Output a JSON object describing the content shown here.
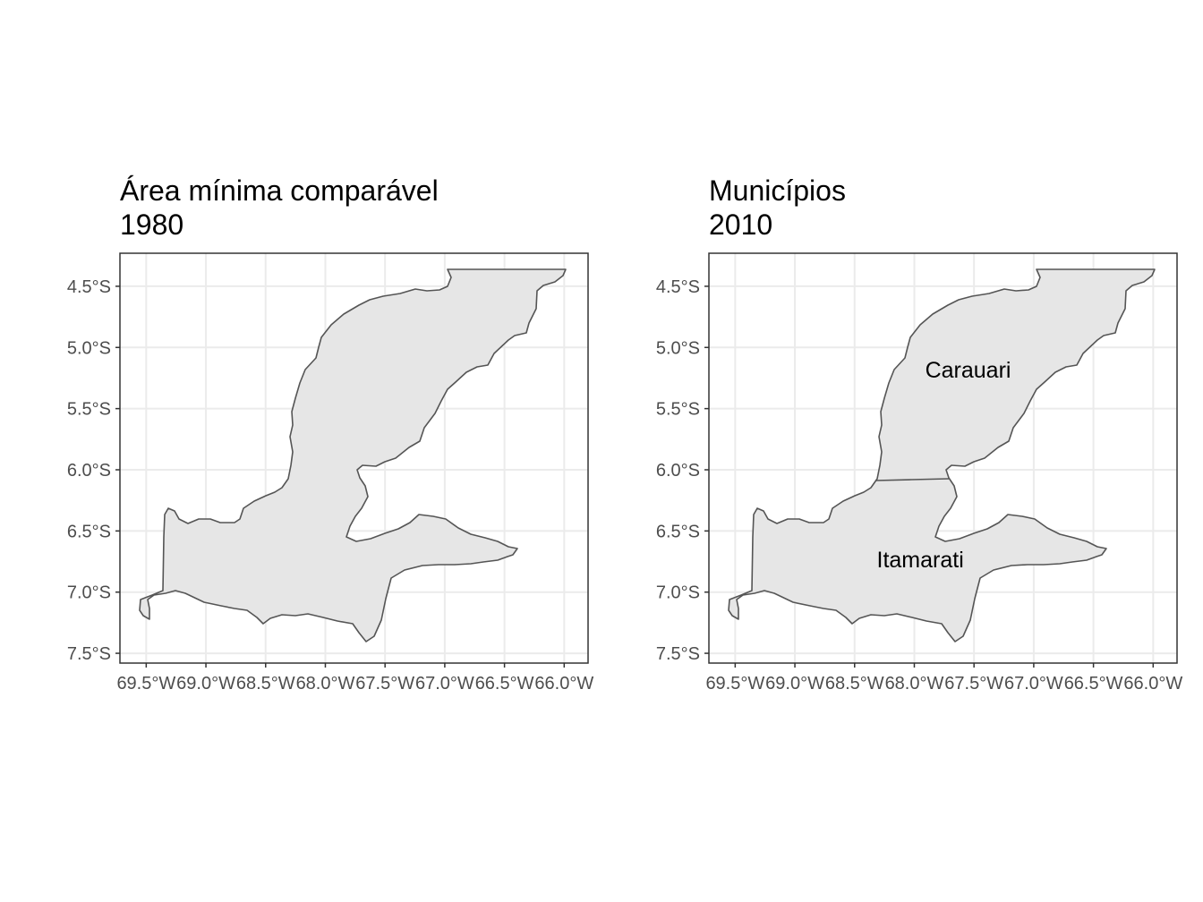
{
  "panels": [
    {
      "title_line1": "Área mínima comparável",
      "title_line2": "1980",
      "labels": []
    },
    {
      "title_line1": "Municípios",
      "title_line2": "2010",
      "labels": [
        {
          "text": "Carauari",
          "lon": -67.55,
          "lat": -5.18
        },
        {
          "text": "Itamarati",
          "lon": -67.95,
          "lat": -6.73
        }
      ]
    }
  ],
  "axes": {
    "x_ticks": [
      {
        "value": -69.5,
        "label": "69.5°W"
      },
      {
        "value": -69.0,
        "label": "69.0°W"
      },
      {
        "value": -68.5,
        "label": "68.5°W"
      },
      {
        "value": -68.0,
        "label": "68.0°W"
      },
      {
        "value": -67.5,
        "label": "67.5°W"
      },
      {
        "value": -67.0,
        "label": "67.0°W"
      },
      {
        "value": -66.5,
        "label": "66.5°W"
      },
      {
        "value": -66.0,
        "label": "66.0°W"
      }
    ],
    "y_ticks": [
      {
        "value": -4.5,
        "label": "4.5°S"
      },
      {
        "value": -5.0,
        "label": "5.0°S"
      },
      {
        "value": -5.5,
        "label": "5.5°S"
      },
      {
        "value": -6.0,
        "label": "6.0°S"
      },
      {
        "value": -6.5,
        "label": "6.5°S"
      },
      {
        "value": -7.0,
        "label": "7.0°S"
      },
      {
        "value": -7.5,
        "label": "7.5°S"
      }
    ],
    "xlim": [
      -69.72,
      -65.8
    ],
    "ylim": [
      -7.58,
      -4.23
    ]
  },
  "colors": {
    "fill": "#e6e6e6",
    "border": "#555555",
    "grid": "#ebebeb",
    "panel_border": "#333333"
  }
}
